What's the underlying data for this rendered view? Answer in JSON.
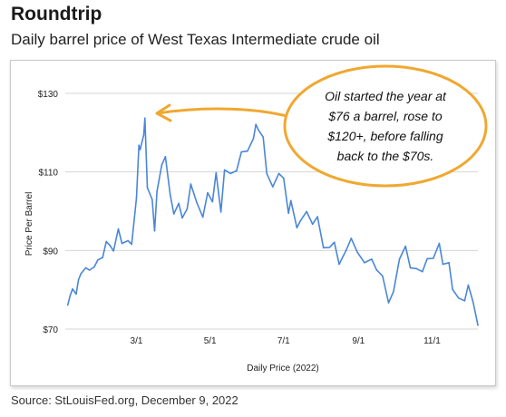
{
  "header": {
    "title": "Roundtrip",
    "subtitle": "Daily barrel price of West Texas Intermediate crude oil"
  },
  "footer": {
    "source": "Source: StLouisFed.org, December 9, 2022"
  },
  "colors": {
    "line": "#4a86d8",
    "annotation": "#f0a830",
    "grid": "#d4d4d4"
  },
  "annotation": {
    "lines": [
      "Oil started the year at",
      "$76 a barrel, rose to",
      "$120+, before falling",
      "back to the $70s."
    ]
  },
  "chart_data": {
    "type": "line",
    "title": "",
    "xlabel": "Daily Price (2022)",
    "ylabel": "Price Per Barrel",
    "xlim": [
      "2022-01-01",
      "2022-12-09"
    ],
    "ylim": [
      70,
      130
    ],
    "yticks": [
      70,
      90,
      110,
      130
    ],
    "ytick_labels": [
      "$70",
      "$90",
      "$110",
      "$130"
    ],
    "xticks": [
      "2022-03-01",
      "2022-05-01",
      "2022-07-01",
      "2022-09-01",
      "2022-11-01"
    ],
    "xtick_labels": [
      "3/1",
      "5/1",
      "7/1",
      "9/1",
      "11/1"
    ],
    "grid": "horizontal",
    "series": [
      {
        "x": [
          "2022-01-03",
          "2022-01-05",
          "2022-01-07",
          "2022-01-10",
          "2022-01-12",
          "2022-01-14",
          "2022-01-18",
          "2022-01-21",
          "2022-01-25",
          "2022-01-28",
          "2022-02-01",
          "2022-02-04",
          "2022-02-07",
          "2022-02-10",
          "2022-02-14",
          "2022-02-17",
          "2022-02-22",
          "2022-02-25",
          "2022-03-01",
          "2022-03-03",
          "2022-03-04",
          "2022-03-07",
          "2022-03-08",
          "2022-03-10",
          "2022-03-14",
          "2022-03-16",
          "2022-03-18",
          "2022-03-22",
          "2022-03-25",
          "2022-03-29",
          "2022-04-01",
          "2022-04-05",
          "2022-04-08",
          "2022-04-12",
          "2022-04-15",
          "2022-04-20",
          "2022-04-25",
          "2022-04-29",
          "2022-05-03",
          "2022-05-06",
          "2022-05-10",
          "2022-05-13",
          "2022-05-18",
          "2022-05-23",
          "2022-05-27",
          "2022-06-01",
          "2022-06-06",
          "2022-06-08",
          "2022-06-10",
          "2022-06-14",
          "2022-06-17",
          "2022-06-22",
          "2022-06-27",
          "2022-07-01",
          "2022-07-05",
          "2022-07-07",
          "2022-07-12",
          "2022-07-15",
          "2022-07-20",
          "2022-07-25",
          "2022-07-29",
          "2022-08-03",
          "2022-08-08",
          "2022-08-12",
          "2022-08-16",
          "2022-08-22",
          "2022-08-26",
          "2022-08-31",
          "2022-09-06",
          "2022-09-12",
          "2022-09-16",
          "2022-09-21",
          "2022-09-26",
          "2022-09-30",
          "2022-10-05",
          "2022-10-10",
          "2022-10-14",
          "2022-10-19",
          "2022-10-24",
          "2022-10-28",
          "2022-11-02",
          "2022-11-07",
          "2022-11-10",
          "2022-11-15",
          "2022-11-18",
          "2022-11-23",
          "2022-11-28",
          "2022-12-01",
          "2022-12-05",
          "2022-12-09"
        ],
        "y": [
          76.1,
          78.5,
          80.2,
          78.9,
          82.6,
          84.1,
          85.6,
          85.0,
          85.8,
          87.6,
          88.2,
          92.3,
          91.3,
          89.9,
          95.5,
          91.8,
          92.5,
          91.6,
          103.4,
          116.8,
          115.7,
          119.4,
          123.7,
          106.0,
          103.0,
          95.0,
          105.0,
          111.8,
          113.9,
          104.2,
          99.3,
          102.0,
          98.3,
          100.6,
          106.9,
          102.2,
          98.5,
          104.7,
          102.4,
          109.8,
          99.8,
          110.5,
          109.6,
          110.3,
          115.1,
          115.3,
          118.5,
          122.1,
          120.7,
          118.9,
          109.6,
          106.2,
          109.6,
          108.4,
          99.5,
          102.7,
          95.8,
          97.6,
          99.9,
          96.7,
          98.6,
          90.7,
          90.8,
          92.1,
          86.5,
          90.2,
          93.1,
          89.6,
          86.9,
          87.8,
          85.1,
          83.5,
          76.7,
          79.5,
          87.8,
          91.1,
          85.6,
          85.4,
          84.6,
          87.9,
          88.0,
          91.8,
          86.5,
          86.9,
          80.1,
          77.9,
          77.2,
          81.2,
          76.9,
          71.0
        ]
      }
    ]
  }
}
